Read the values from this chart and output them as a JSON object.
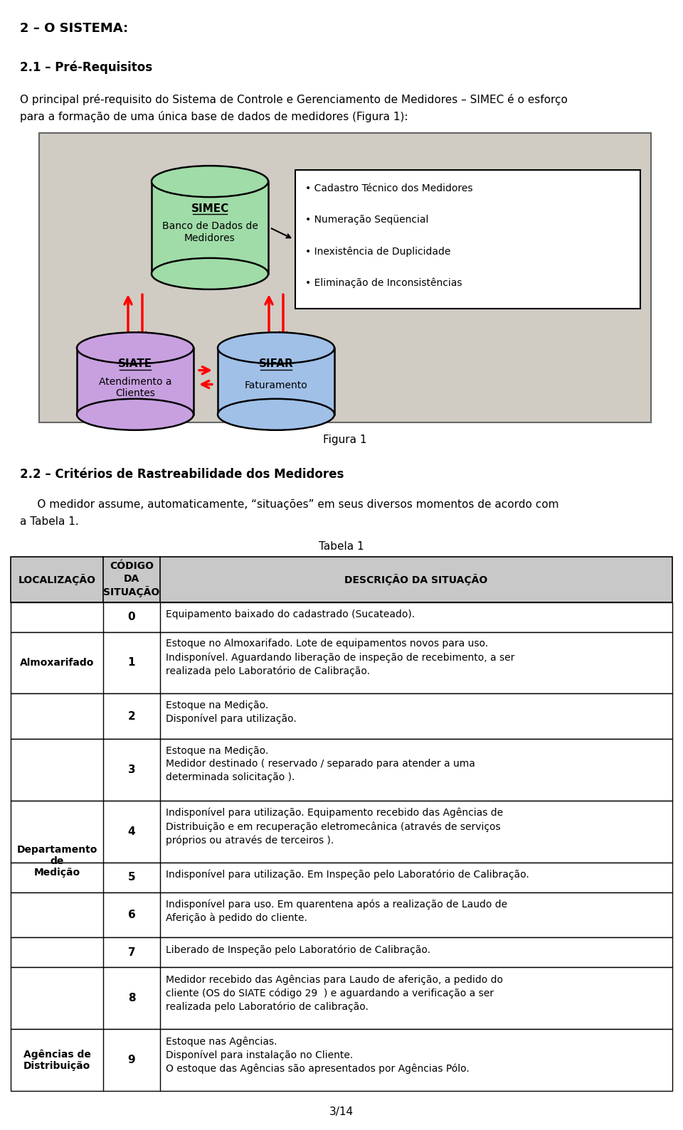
{
  "title_section": "2 – O SISTEMA:",
  "subtitle": "2.1 – Pré-Requisitos",
  "para1_line1": "O principal pré-requisito do Sistema de Controle e Gerenciamento de Medidores – SIMEC é o esforço",
  "para1_line2": "para a formação de uma única base de dados de medidores (Figura 1):",
  "simec_label": "SIMEC",
  "simec_sublabel": "Banco de Dados de\nMedidores",
  "siate_label": "SIATE",
  "siate_sublabel": "Atendimento a\nClientes",
  "sifar_label": "SIFAR",
  "sifar_sublabel": "Faturamento",
  "bullet_items": [
    "Cadastro Técnico dos Medidores",
    "Numeração Seqüencial",
    "Inexistência de Duplicidade",
    "Eliminação de Inconsistências"
  ],
  "figura_label": "Figura 1",
  "section22": "2.2 – Critérios de Rastreabilidade dos Medidores",
  "para22_line1": "     O medidor assume, automaticamente, “situações” em seus diversos momentos de acordo com",
  "para22_line2": "a Tabela 1.",
  "tabela_label": "Tabela 1",
  "table_headers": [
    "LOCALIZAÇÃO",
    "CÓDIGO\nDA\nSITUAÇÃO",
    "DESCRIÇÃO DA SITUAÇÃO"
  ],
  "table_rows": [
    {
      "code": "0",
      "desc": "Equipamento baixado do cadastrado (Sucateado)."
    },
    {
      "code": "1",
      "desc": "Estoque no Almoxarifado. Lote de equipamentos novos para uso.\nIndisponível. Aguardando liberação de inspeção de recebimento, a ser\nrealizada pelo Laboratório de Calibração."
    },
    {
      "code": "2",
      "desc": "Estoque na Medição.\nDisponível para utilização."
    },
    {
      "code": "3",
      "desc": "Estoque na Medição.\nMedidor destinado ( reservado / separado para atender a uma\ndeterminada solicitação )."
    },
    {
      "code": "4",
      "desc": "Indisponível para utilização. Equipamento recebido das Agências de\nDistribuição e em recuperação eletromecânica (através de serviços\npróprios ou através de terceiros )."
    },
    {
      "code": "5",
      "desc": "Indisponível para utilização. Em Inspeção pelo Laboratório de Calibração."
    },
    {
      "code": "6",
      "desc": "Indisponível para uso. Em quarentena após a realização de Laudo de\nAferição à pedido do cliente."
    },
    {
      "code": "7",
      "desc": "Liberado de Inspeção pelo Laboratório de Calibração."
    },
    {
      "code": "8",
      "desc": "Medidor recebido das Agências para Laudo de aferição, a pedido do\ncliente (OS do SIATE código 29  ) e aguardando a verificação a ser\nrealizada pelo Laboratório de calibração."
    },
    {
      "code": "9",
      "desc": "Estoque nas Agências.\nDisponível para instalação no Cliente.\nO estoque das Agências são apresentados por Agências Pólo."
    }
  ],
  "loc_groups": [
    {
      "start": 0,
      "end": 0,
      "text": ""
    },
    {
      "start": 1,
      "end": 1,
      "text": "Almoxarifado"
    },
    {
      "start": 2,
      "end": 8,
      "text": "Departamento\nde\nMedição"
    },
    {
      "start": 9,
      "end": 9,
      "text": "Agências de\nDistribuição"
    }
  ],
  "page_number": "3/14",
  "bg_color": "#d0ccc4",
  "simec_color": "#a0dca8",
  "siate_color": "#c8a0e0",
  "sifar_color": "#a0c0e8",
  "header_bg": "#c8c8c8"
}
